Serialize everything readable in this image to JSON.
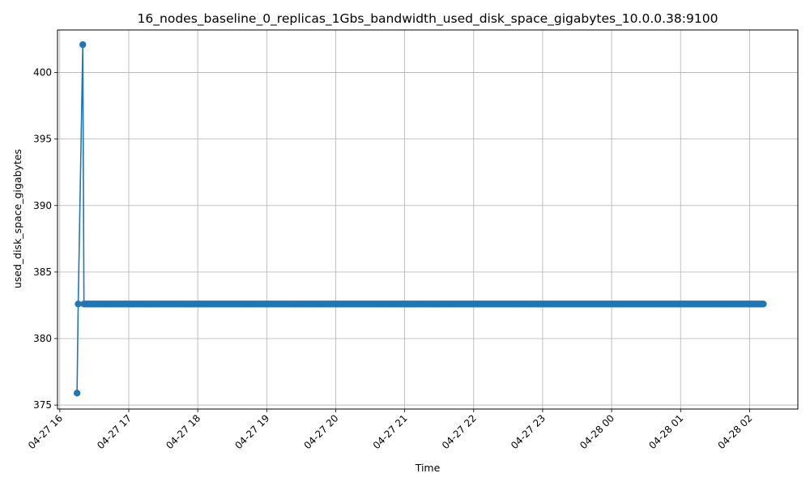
{
  "chart_data": {
    "type": "line",
    "title": "16_nodes_baseline_0_replicas_1Gbs_bandwidth_used_disk_space_gigabytes_10.0.0.38:9100",
    "xlabel": "Time",
    "ylabel": "used_disk_space_gigabytes",
    "xlim": [
      "2024-04-27 15:58",
      "2024-04-28 02:42"
    ],
    "ylim": [
      374.7,
      403.2
    ],
    "grid": true,
    "legend": "none",
    "x_ticks": [
      {
        "value": "2024-04-27 16:00",
        "label": "04-27 16"
      },
      {
        "value": "2024-04-27 17:00",
        "label": "04-27 17"
      },
      {
        "value": "2024-04-27 18:00",
        "label": "04-27 18"
      },
      {
        "value": "2024-04-27 19:00",
        "label": "04-27 19"
      },
      {
        "value": "2024-04-27 20:00",
        "label": "04-27 20"
      },
      {
        "value": "2024-04-27 21:00",
        "label": "04-27 21"
      },
      {
        "value": "2024-04-27 22:00",
        "label": "04-27 22"
      },
      {
        "value": "2024-04-27 23:00",
        "label": "04-27 23"
      },
      {
        "value": "2024-04-28 00:00",
        "label": "04-28 00"
      },
      {
        "value": "2024-04-28 01:00",
        "label": "04-28 01"
      },
      {
        "value": "2024-04-28 02:00",
        "label": "04-28 02"
      }
    ],
    "y_ticks": [
      {
        "value": 375,
        "label": "375"
      },
      {
        "value": 380,
        "label": "380"
      },
      {
        "value": 385,
        "label": "385"
      },
      {
        "value": 390,
        "label": "390"
      },
      {
        "value": 395,
        "label": "395"
      },
      {
        "value": 400,
        "label": "400"
      }
    ],
    "series": [
      {
        "color": "#1f77b4",
        "marker": "circle",
        "points": [
          {
            "x": "2024-04-27 16:15",
            "y": 375.9
          },
          {
            "x": "2024-04-27 16:16",
            "y": 382.6
          },
          {
            "x": "2024-04-27 16:20",
            "y": 402.1
          },
          {
            "x": "2024-04-27 16:21",
            "y": 382.6
          }
        ],
        "steady": {
          "start": "2024-04-27 16:21",
          "end": "2024-04-28 02:12",
          "interval_minutes": 1,
          "y": 382.6
        }
      }
    ]
  },
  "colors": {
    "series": "#1f77b4",
    "grid": "#b0b0b0",
    "axes": "#000000"
  }
}
